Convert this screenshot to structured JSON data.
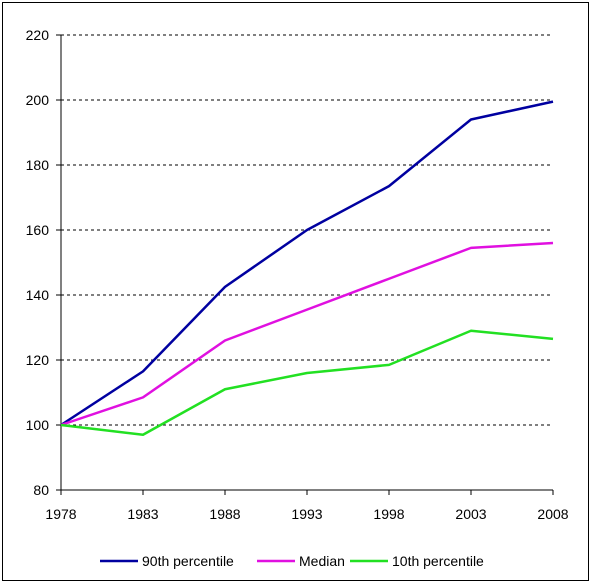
{
  "chart_data": {
    "type": "line",
    "title": "",
    "xlabel": "",
    "ylabel": "",
    "x": [
      1978,
      1983,
      1988,
      1993,
      1998,
      2003,
      2008
    ],
    "x_tick_labels": [
      "1978",
      "1983",
      "1988",
      "1993",
      "1998",
      "2003",
      "2008"
    ],
    "ylim": [
      80,
      220
    ],
    "y_tick_labels": [
      "80",
      "100",
      "120",
      "140",
      "160",
      "180",
      "200",
      "220"
    ],
    "y_ticks": [
      80,
      100,
      120,
      140,
      160,
      180,
      200,
      220
    ],
    "grid": "horizontal dashed",
    "legend_position": "bottom",
    "series": [
      {
        "name": "90th percentile",
        "color": "#0000a0",
        "values": [
          100,
          116.5,
          142.5,
          160,
          173.5,
          194,
          199.5
        ]
      },
      {
        "name": "Median",
        "color": "#e010e0",
        "values": [
          100,
          108.5,
          126,
          135.5,
          145,
          154.5,
          156
        ]
      },
      {
        "name": "10th percentile",
        "color": "#22e022",
        "values": [
          100,
          97,
          111,
          116,
          118.5,
          129,
          126.5
        ]
      }
    ]
  }
}
